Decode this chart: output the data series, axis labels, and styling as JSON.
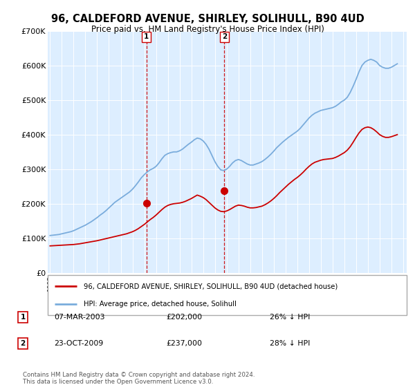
{
  "title": "96, CALDEFORD AVENUE, SHIRLEY, SOLIHULL, B90 4UD",
  "subtitle": "Price paid vs. HM Land Registry's House Price Index (HPI)",
  "legend_line1": "96, CALDEFORD AVENUE, SHIRLEY, SOLIHULL, B90 4UD (detached house)",
  "legend_line2": "HPI: Average price, detached house, Solihull",
  "footer": "Contains HM Land Registry data © Crown copyright and database right 2024.\nThis data is licensed under the Open Government Licence v3.0.",
  "sale_color": "#cc0000",
  "hpi_color": "#7aacdc",
  "marker_color": "#cc0000",
  "vline_color": "#cc0000",
  "background_color": "#ddeeff",
  "grid_color": "#ffffff",
  "ylim": [
    0,
    700000
  ],
  "yticks": [
    0,
    100000,
    200000,
    300000,
    400000,
    500000,
    600000,
    700000
  ],
  "ytick_labels": [
    "£0",
    "£100K",
    "£200K",
    "£300K",
    "£400K",
    "£500K",
    "£600K",
    "£700K"
  ],
  "transactions": [
    {
      "label": "1",
      "date": "07-MAR-2003",
      "price": 202000,
      "year": 2003.18,
      "pct": "26%",
      "dir": "↓"
    },
    {
      "label": "2",
      "date": "23-OCT-2009",
      "price": 237000,
      "year": 2009.81,
      "pct": "28%",
      "dir": "↓"
    }
  ],
  "hpi_years": [
    1995.0,
    1995.25,
    1995.5,
    1995.75,
    1996.0,
    1996.25,
    1996.5,
    1996.75,
    1997.0,
    1997.25,
    1997.5,
    1997.75,
    1998.0,
    1998.25,
    1998.5,
    1998.75,
    1999.0,
    1999.25,
    1999.5,
    1999.75,
    2000.0,
    2000.25,
    2000.5,
    2000.75,
    2001.0,
    2001.25,
    2001.5,
    2001.75,
    2002.0,
    2002.25,
    2002.5,
    2002.75,
    2003.0,
    2003.25,
    2003.5,
    2003.75,
    2004.0,
    2004.25,
    2004.5,
    2004.75,
    2005.0,
    2005.25,
    2005.5,
    2005.75,
    2006.0,
    2006.25,
    2006.5,
    2006.75,
    2007.0,
    2007.25,
    2007.5,
    2007.75,
    2008.0,
    2008.25,
    2008.5,
    2008.75,
    2009.0,
    2009.25,
    2009.5,
    2009.75,
    2010.0,
    2010.25,
    2010.5,
    2010.75,
    2011.0,
    2011.25,
    2011.5,
    2011.75,
    2012.0,
    2012.25,
    2012.5,
    2012.75,
    2013.0,
    2013.25,
    2013.5,
    2013.75,
    2014.0,
    2014.25,
    2014.5,
    2014.75,
    2015.0,
    2015.25,
    2015.5,
    2015.75,
    2016.0,
    2016.25,
    2016.5,
    2016.75,
    2017.0,
    2017.25,
    2017.5,
    2017.75,
    2018.0,
    2018.25,
    2018.5,
    2018.75,
    2019.0,
    2019.25,
    2019.5,
    2019.75,
    2020.0,
    2020.25,
    2020.5,
    2020.75,
    2021.0,
    2021.25,
    2021.5,
    2021.75,
    2022.0,
    2022.25,
    2022.5,
    2022.75,
    2023.0,
    2023.25,
    2023.5,
    2023.75,
    2024.0,
    2024.25,
    2024.5
  ],
  "hpi_values": [
    108000,
    109000,
    110000,
    111000,
    113000,
    115000,
    117000,
    119000,
    122000,
    126000,
    130000,
    134000,
    138000,
    143000,
    148000,
    154000,
    160000,
    167000,
    173000,
    180000,
    188000,
    196000,
    204000,
    210000,
    216000,
    222000,
    228000,
    234000,
    242000,
    252000,
    263000,
    275000,
    284000,
    292000,
    298000,
    302000,
    308000,
    318000,
    330000,
    340000,
    345000,
    348000,
    350000,
    350000,
    353000,
    358000,
    365000,
    372000,
    378000,
    385000,
    390000,
    388000,
    382000,
    372000,
    358000,
    340000,
    322000,
    308000,
    298000,
    296000,
    300000,
    308000,
    318000,
    325000,
    328000,
    325000,
    320000,
    315000,
    312000,
    312000,
    315000,
    318000,
    322000,
    328000,
    335000,
    343000,
    352000,
    362000,
    370000,
    378000,
    385000,
    392000,
    398000,
    404000,
    410000,
    418000,
    428000,
    438000,
    448000,
    456000,
    462000,
    466000,
    470000,
    472000,
    474000,
    476000,
    478000,
    482000,
    488000,
    495000,
    500000,
    508000,
    522000,
    540000,
    560000,
    582000,
    600000,
    610000,
    615000,
    618000,
    615000,
    610000,
    600000,
    595000,
    592000,
    592000,
    595000,
    600000,
    605000
  ],
  "sale_years": [
    1995.0,
    1995.25,
    1995.5,
    1995.75,
    1996.0,
    1996.25,
    1996.5,
    1996.75,
    1997.0,
    1997.25,
    1997.5,
    1997.75,
    1998.0,
    1998.25,
    1998.5,
    1998.75,
    1999.0,
    1999.25,
    1999.5,
    1999.75,
    2000.0,
    2000.25,
    2000.5,
    2000.75,
    2001.0,
    2001.25,
    2001.5,
    2001.75,
    2002.0,
    2002.25,
    2002.5,
    2002.75,
    2003.0,
    2003.25,
    2003.5,
    2003.75,
    2004.0,
    2004.25,
    2004.5,
    2004.75,
    2005.0,
    2005.25,
    2005.5,
    2005.75,
    2006.0,
    2006.25,
    2006.5,
    2006.75,
    2007.0,
    2007.25,
    2007.5,
    2007.75,
    2008.0,
    2008.25,
    2008.5,
    2008.75,
    2009.0,
    2009.25,
    2009.5,
    2009.75,
    2010.0,
    2010.25,
    2010.5,
    2010.75,
    2011.0,
    2011.25,
    2011.5,
    2011.75,
    2012.0,
    2012.25,
    2012.5,
    2012.75,
    2013.0,
    2013.25,
    2013.5,
    2013.75,
    2014.0,
    2014.25,
    2014.5,
    2014.75,
    2015.0,
    2015.25,
    2015.5,
    2015.75,
    2016.0,
    2016.25,
    2016.5,
    2016.75,
    2017.0,
    2017.25,
    2017.5,
    2017.75,
    2018.0,
    2018.25,
    2018.5,
    2018.75,
    2019.0,
    2019.25,
    2019.5,
    2019.75,
    2020.0,
    2020.25,
    2020.5,
    2020.75,
    2021.0,
    2021.25,
    2021.5,
    2021.75,
    2022.0,
    2022.25,
    2022.5,
    2022.75,
    2023.0,
    2023.25,
    2023.5,
    2023.75,
    2024.0,
    2024.25,
    2024.5
  ],
  "sale_values": [
    78000,
    78500,
    79000,
    79500,
    80000,
    80500,
    81000,
    81500,
    82000,
    83000,
    84000,
    85500,
    87000,
    88500,
    90000,
    91500,
    93000,
    95000,
    97000,
    99000,
    101000,
    103000,
    105000,
    107000,
    109000,
    111000,
    113000,
    116000,
    119000,
    123000,
    128000,
    134000,
    140000,
    147000,
    154000,
    160000,
    167000,
    175000,
    183000,
    190000,
    195000,
    198000,
    200000,
    201000,
    202000,
    204000,
    207000,
    211000,
    215000,
    220000,
    225000,
    222000,
    218000,
    212000,
    204000,
    196000,
    188000,
    182000,
    178000,
    177000,
    179000,
    183000,
    188000,
    193000,
    196000,
    195000,
    193000,
    190000,
    188000,
    188000,
    189000,
    191000,
    193000,
    197000,
    202000,
    208000,
    215000,
    223000,
    232000,
    240000,
    248000,
    256000,
    263000,
    270000,
    276000,
    283000,
    291000,
    300000,
    308000,
    315000,
    320000,
    323000,
    326000,
    328000,
    329000,
    330000,
    331000,
    334000,
    338000,
    343000,
    348000,
    355000,
    365000,
    378000,
    392000,
    405000,
    415000,
    420000,
    422000,
    420000,
    415000,
    408000,
    400000,
    395000,
    392000,
    392000,
    394000,
    397000,
    400000
  ]
}
